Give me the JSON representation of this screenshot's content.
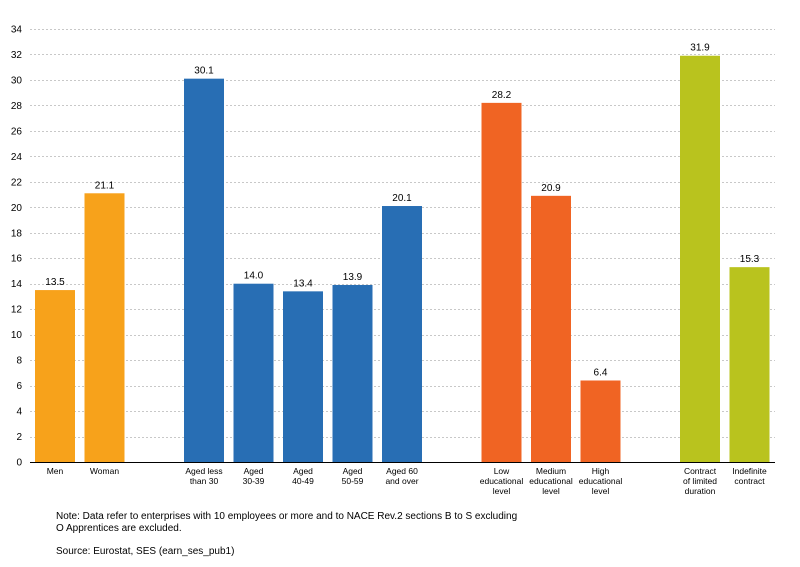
{
  "chart_data": {
    "type": "bar",
    "ylim": [
      0,
      34
    ],
    "ytick_step": 2,
    "grid": true,
    "categories": [
      {
        "label": [
          "Men"
        ],
        "value": 13.5,
        "value_label": "13.5",
        "color": "#f7a21b",
        "group": "sex"
      },
      {
        "label": [
          "Woman"
        ],
        "value": 21.1,
        "value_label": "21.1",
        "color": "#f7a21b",
        "group": "sex"
      },
      {
        "label": [
          "Aged less",
          "than 30"
        ],
        "value": 30.1,
        "value_label": "30.1",
        "color": "#286eb4",
        "group": "age"
      },
      {
        "label": [
          "Aged",
          "30-39"
        ],
        "value": 14.0,
        "value_label": "14.0",
        "color": "#286eb4",
        "group": "age"
      },
      {
        "label": [
          "Aged",
          "40-49"
        ],
        "value": 13.4,
        "value_label": "13.4",
        "color": "#286eb4",
        "group": "age"
      },
      {
        "label": [
          "Aged",
          "50-59"
        ],
        "value": 13.9,
        "value_label": "13.9",
        "color": "#286eb4",
        "group": "age"
      },
      {
        "label": [
          "Aged 60",
          "and over"
        ],
        "value": 20.1,
        "value_label": "20.1",
        "color": "#286eb4",
        "group": "age"
      },
      {
        "label": [
          "Low",
          "educational",
          "level"
        ],
        "value": 28.2,
        "value_label": "28.2",
        "color": "#f06423",
        "group": "education"
      },
      {
        "label": [
          "Medium",
          "educational",
          "level"
        ],
        "value": 20.9,
        "value_label": "20.9",
        "color": "#f06423",
        "group": "education"
      },
      {
        "label": [
          "High",
          "educational",
          "level"
        ],
        "value": 6.4,
        "value_label": "6.4",
        "color": "#f06423",
        "group": "education"
      },
      {
        "label": [
          "Contract",
          "of limited",
          "duration"
        ],
        "value": 31.9,
        "value_label": "31.9",
        "color": "#b9c31e",
        "group": "contract"
      },
      {
        "label": [
          "Indefinite",
          "contract"
        ],
        "value": 15.3,
        "value_label": "15.3",
        "color": "#b9c31e",
        "group": "contract"
      }
    ]
  },
  "footer": {
    "note": "Note: Data refer to enterprises with 10 employees or more and to NACE Rev.2 sections B to S excluding O Apprentices are excluded.",
    "source": "Source: Eurostat, SES (earn_ses_pub1)"
  }
}
